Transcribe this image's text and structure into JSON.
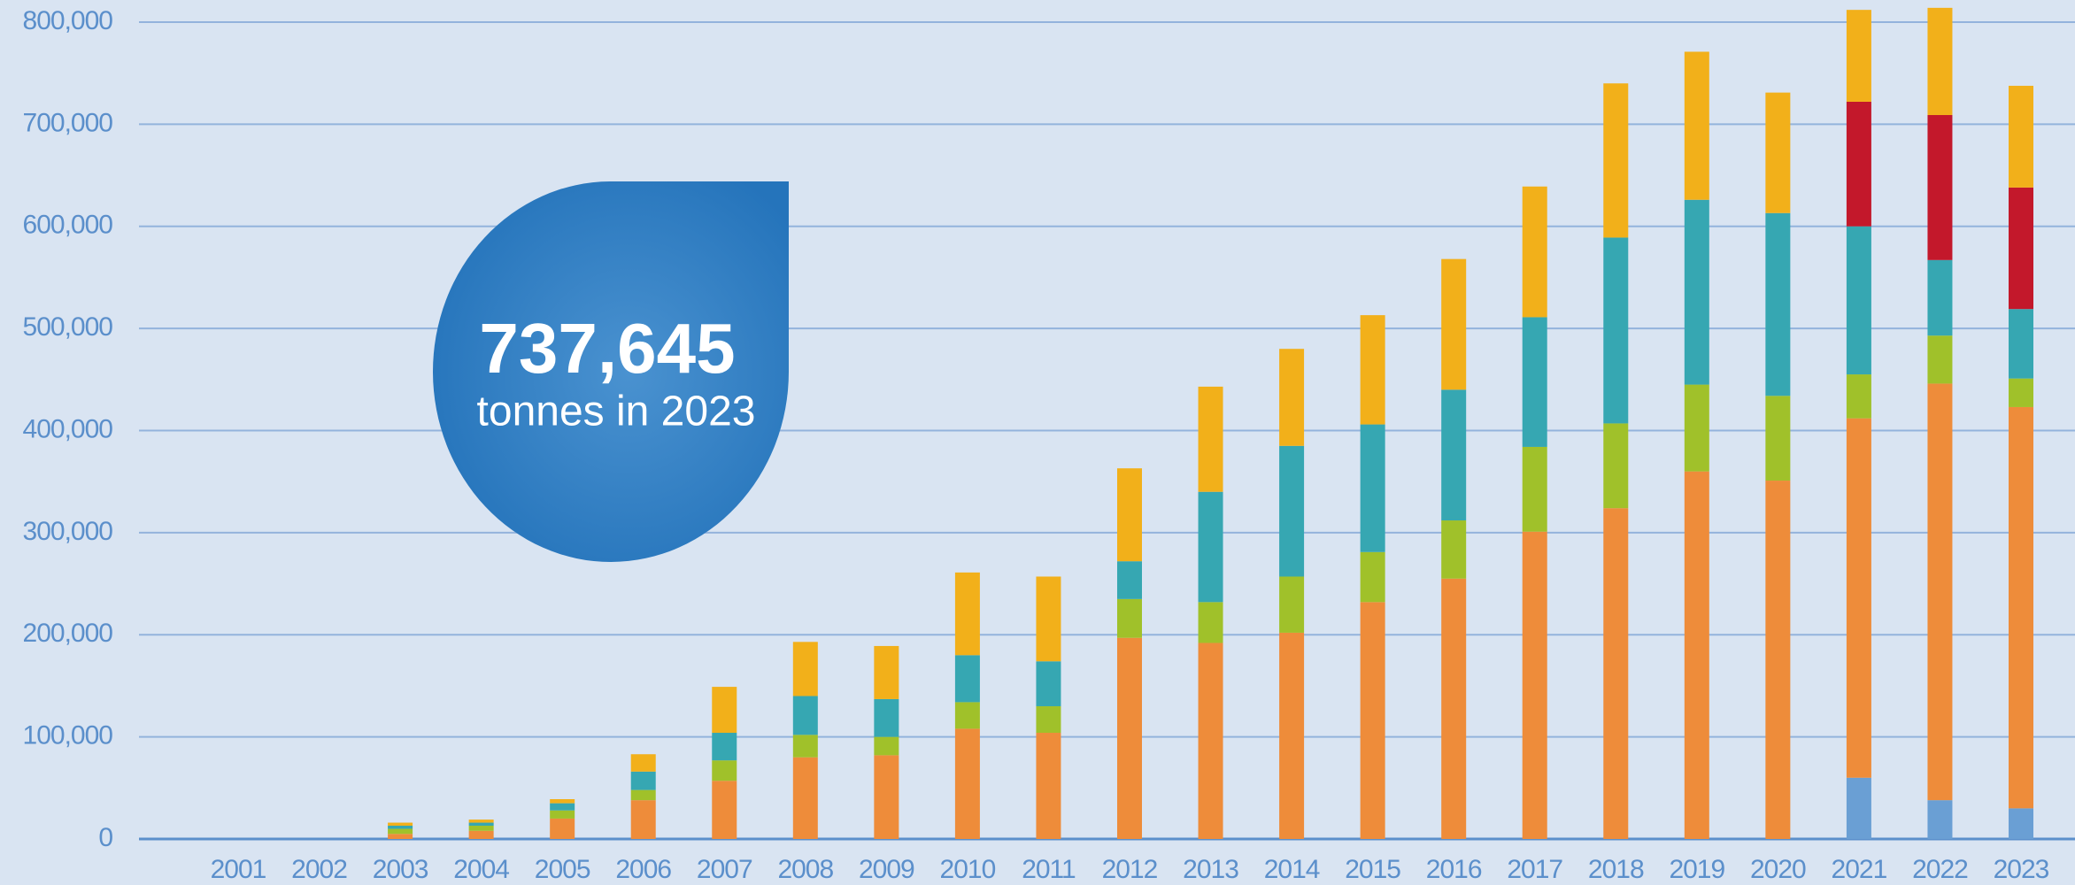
{
  "chart_data": {
    "type": "stacked_bar",
    "annotation_value": "737,645",
    "annotation_text": "tonnes in 2023",
    "categories": [
      "2001",
      "2002",
      "2003",
      "2004",
      "2005",
      "2006",
      "2007",
      "2008",
      "2009",
      "2010",
      "2011",
      "2012",
      "2013",
      "2014",
      "2015",
      "2016",
      "2017",
      "2018",
      "2019",
      "2020",
      "2021",
      "2022",
      "2023"
    ],
    "series": [
      {
        "color": "#6a9fd4",
        "values": [
          0,
          0,
          0,
          0,
          0,
          0,
          0,
          0,
          0,
          0,
          0,
          0,
          0,
          0,
          0,
          0,
          0,
          0,
          0,
          0,
          60000,
          38000,
          30000
        ]
      },
      {
        "color": "#ee8c3a",
        "values": [
          0,
          0,
          5000,
          8000,
          20000,
          38000,
          57000,
          80000,
          82000,
          108000,
          104000,
          197000,
          192000,
          202000,
          232000,
          255000,
          301000,
          324000,
          360000,
          351000,
          352000,
          408000,
          393000
        ]
      },
      {
        "color": "#a0c12a",
        "values": [
          0,
          0,
          5000,
          5000,
          8000,
          10000,
          20000,
          22000,
          18000,
          26000,
          26000,
          38000,
          40000,
          55000,
          49000,
          57000,
          83000,
          83000,
          85000,
          83000,
          43000,
          47000,
          28000
        ]
      },
      {
        "color": "#36a7b2",
        "values": [
          0,
          0,
          3000,
          3000,
          7000,
          18000,
          27000,
          38000,
          37000,
          46000,
          44000,
          37000,
          108000,
          128000,
          125000,
          128000,
          127000,
          182000,
          181000,
          179000,
          145000,
          74000,
          68000
        ]
      },
      {
        "color": "#c3182b",
        "values": [
          0,
          0,
          0,
          0,
          0,
          0,
          0,
          0,
          0,
          0,
          0,
          0,
          0,
          0,
          0,
          0,
          0,
          0,
          0,
          0,
          122000,
          142000,
          119000
        ]
      },
      {
        "color": "#f2b01a",
        "values": [
          0,
          0,
          3000,
          3000,
          4000,
          17000,
          45000,
          53000,
          52000,
          81000,
          83000,
          91000,
          103000,
          95000,
          107000,
          128000,
          128000,
          151000,
          145000,
          118000,
          90000,
          105000,
          99645
        ]
      }
    ],
    "ylim": [
      0,
      800000
    ],
    "yticks": [
      0,
      {
        "value": 100000,
        "label": "100,000"
      },
      {
        "value": 200000,
        "label": "200,000"
      },
      {
        "value": 300000,
        "label": "300,000"
      },
      {
        "value": 400000,
        "label": "400,000"
      },
      {
        "value": 500000,
        "label": "500,000"
      },
      {
        "value": 600000,
        "label": "600,000"
      },
      {
        "value": 700000,
        "label": "700,000"
      },
      {
        "value": 800000,
        "label": "800,000"
      }
    ],
    "grid": true
  }
}
